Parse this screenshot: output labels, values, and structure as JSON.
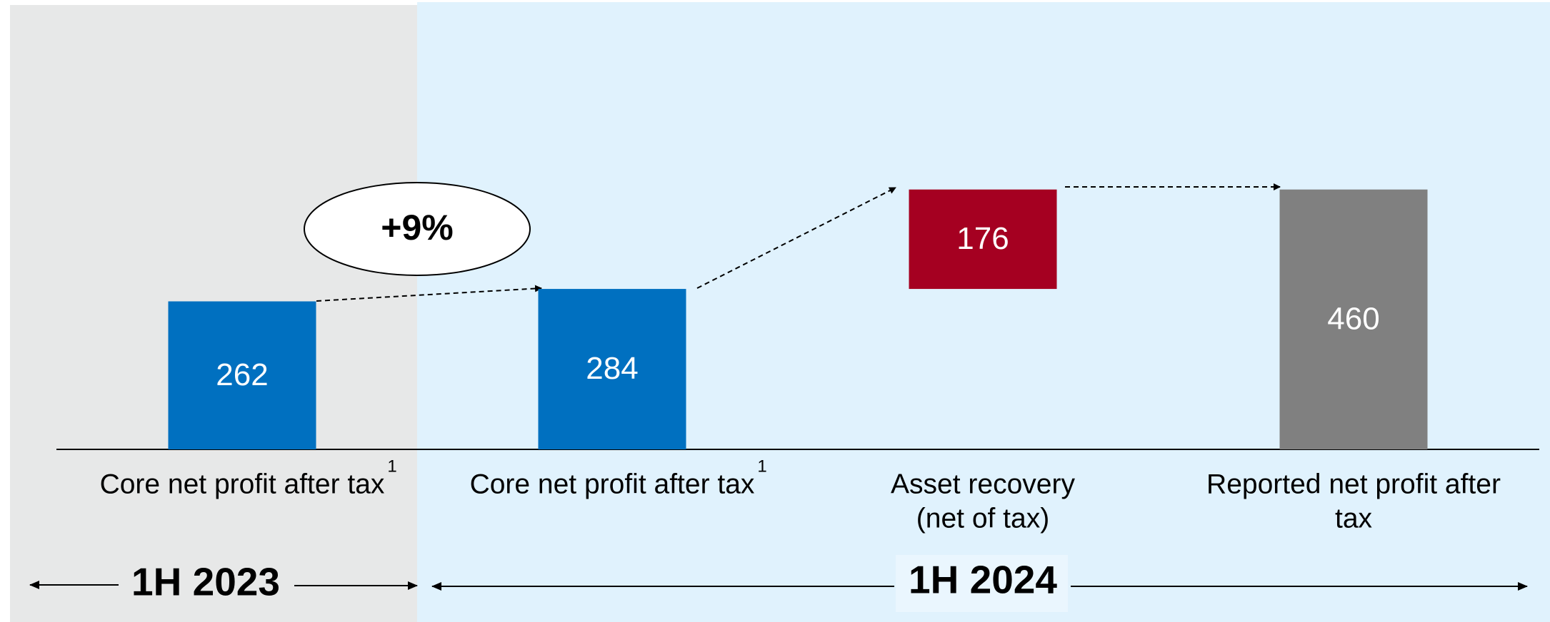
{
  "chart_data": {
    "type": "waterfall",
    "categories": [
      [
        "Core net profit after tax"
      ],
      [
        "Core net profit after tax"
      ],
      [
        "Asset recovery",
        "(net of tax)"
      ],
      [
        "Reported net profit after",
        "tax"
      ]
    ],
    "footnotes": [
      "1",
      "1",
      null,
      null
    ],
    "values": [
      262,
      284,
      176,
      460
    ],
    "measures": [
      "absolute",
      "absolute",
      "relative",
      "total"
    ],
    "colors": [
      "#0070c0",
      "#0070c0",
      "#a50021",
      "#808080"
    ],
    "annotation": "+9%",
    "periods": [
      "1H 2023",
      "1H 2024"
    ]
  }
}
